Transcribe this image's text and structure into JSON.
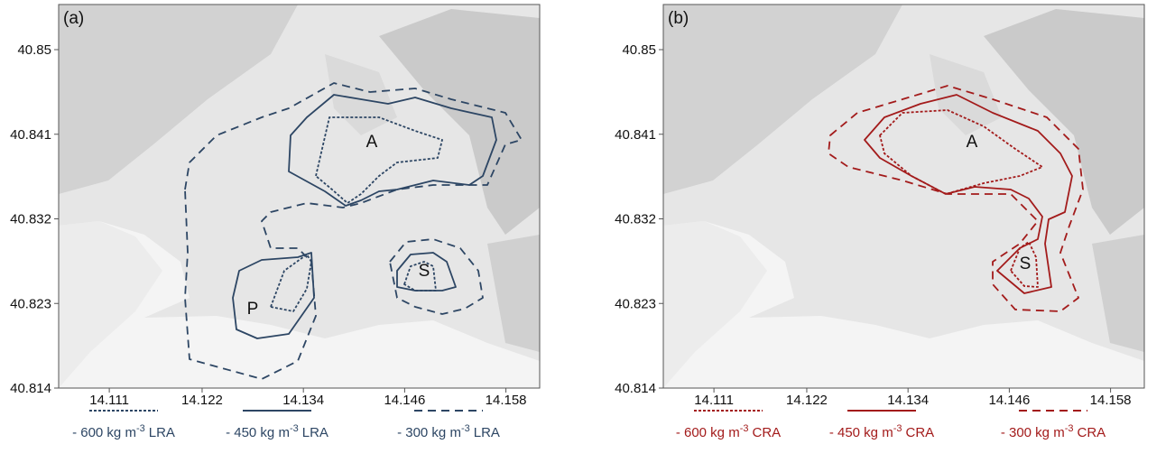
{
  "axes": {
    "xlim": [
      14.105,
      14.162
    ],
    "ylim": [
      40.814,
      40.8548
    ],
    "xticks": [
      14.111,
      14.122,
      14.134,
      14.146,
      14.158
    ],
    "yticks": [
      40.814,
      40.823,
      40.832,
      40.841,
      40.85
    ]
  },
  "panels": [
    {
      "label": "(a)",
      "color": "#2d4664",
      "areas": [
        "A",
        "P",
        "S"
      ],
      "legend": [
        {
          "text": "- 600 kg m",
          "exponent": "-3",
          "suffix": "LRA"
        },
        {
          "text": "- 450 kg m",
          "exponent": "-3",
          "suffix": "LRA"
        },
        {
          "text": "- 300 kg m",
          "exponent": "-3",
          "suffix": "LRA"
        }
      ]
    },
    {
      "label": "(b)",
      "color": "#a31b1b",
      "areas": [
        "A",
        "S"
      ],
      "legend": [
        {
          "text": "- 600 kg m",
          "exponent": "-3",
          "suffix": "CRA"
        },
        {
          "text": "- 450 kg m",
          "exponent": "-3",
          "suffix": "CRA"
        },
        {
          "text": "- 300 kg m",
          "exponent": "-3",
          "suffix": "CRA"
        }
      ]
    }
  ]
}
